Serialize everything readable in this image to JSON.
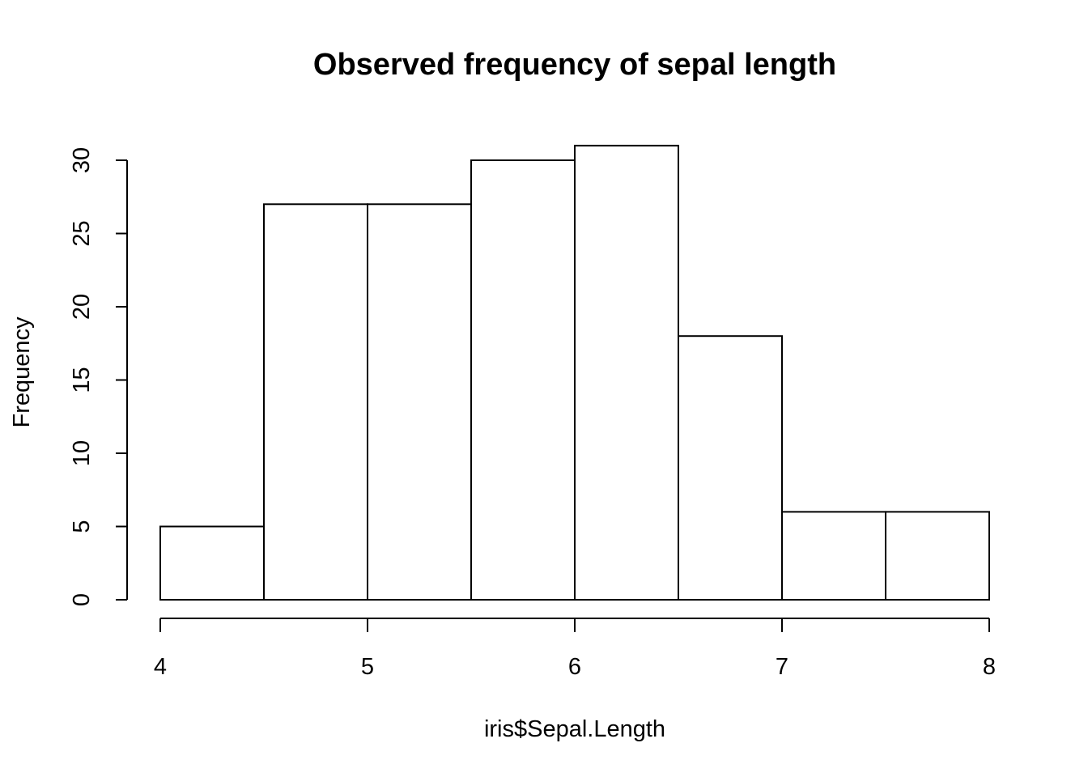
{
  "chart_data": {
    "type": "bar",
    "title": "Observed frequency of sepal length",
    "xlabel": "iris$Sepal.Length",
    "ylabel": "Frequency",
    "bins": [
      {
        "from": 4.0,
        "to": 4.5,
        "count": 5
      },
      {
        "from": 4.5,
        "to": 5.0,
        "count": 27
      },
      {
        "from": 5.0,
        "to": 5.5,
        "count": 27
      },
      {
        "from": 5.5,
        "to": 6.0,
        "count": 30
      },
      {
        "from": 6.0,
        "to": 6.5,
        "count": 31
      },
      {
        "from": 6.5,
        "to": 7.0,
        "count": 18
      },
      {
        "from": 7.0,
        "to": 7.5,
        "count": 6
      },
      {
        "from": 7.5,
        "to": 8.0,
        "count": 6
      }
    ],
    "xlim": [
      4,
      8
    ],
    "ylim": [
      0,
      31
    ],
    "x_ticks": [
      "4",
      "5",
      "6",
      "7",
      "8"
    ],
    "y_ticks": [
      "0",
      "5",
      "10",
      "15",
      "20",
      "25",
      "30"
    ],
    "grid": false,
    "bar_fill": "#ffffff",
    "bar_stroke": "#000000"
  }
}
